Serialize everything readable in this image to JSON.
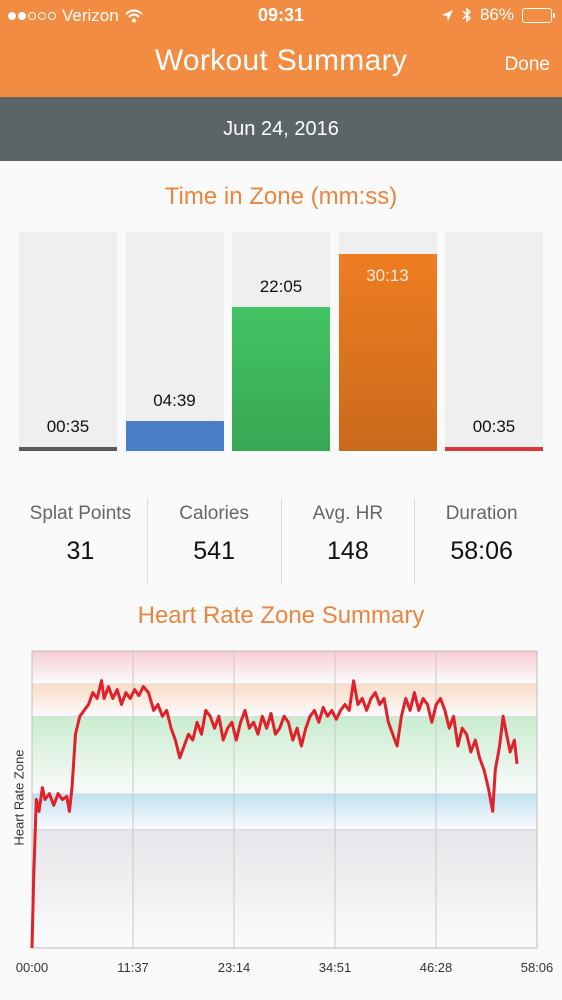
{
  "status": {
    "carrier": "Verizon",
    "time": "09:31",
    "battery": "86%",
    "battery_level": 0.86
  },
  "header": {
    "title": "Workout Summary",
    "done_label": "Done"
  },
  "date": "Jun 24, 2016",
  "zones": {
    "title": "Time in Zone (mm:ss)",
    "items": [
      {
        "label": "00:35",
        "seconds": 35,
        "color": "#5a5a5a"
      },
      {
        "label": "04:39",
        "seconds": 279,
        "color": "#4a7ec7"
      },
      {
        "label": "22:05",
        "seconds": 1325,
        "color": "#43c463"
      },
      {
        "label": "30:13",
        "seconds": 1813,
        "color": "#ee7d21"
      },
      {
        "label": "00:35",
        "seconds": 35,
        "color": "#d7363b"
      }
    ]
  },
  "stats": [
    {
      "label": "Splat Points",
      "value": "31"
    },
    {
      "label": "Calories",
      "value": "541"
    },
    {
      "label": "Avg. HR",
      "value": "148"
    },
    {
      "label": "Duration",
      "value": "58:06"
    }
  ],
  "hr_chart": {
    "title": "Heart Rate Zone Summary",
    "y_axis_label": "Heart Rate Zone",
    "x_ticks": [
      "00:00",
      "11:37",
      "23:14",
      "34:51",
      "46:28",
      "58:06"
    ]
  },
  "chart_data": {
    "type": "line",
    "title": "Heart Rate Zone Summary",
    "ylabel": "Heart Rate Zone",
    "xlabel": "",
    "x_unit": "minutes",
    "x_range": [
      0,
      58.1
    ],
    "y_range": [
      0,
      5
    ],
    "zone_bands": [
      {
        "from": 0,
        "to": 2,
        "color": "#e6e6ea"
      },
      {
        "from": 2,
        "to": 2.6,
        "color": "#bfe0f0"
      },
      {
        "from": 2.6,
        "to": 3.9,
        "color": "#c9eccf"
      },
      {
        "from": 3.9,
        "to": 4.45,
        "color": "#fbdcc6"
      },
      {
        "from": 4.45,
        "to": 5,
        "color": "#f7cdd3"
      }
    ],
    "series": [
      {
        "color": "#e0202a",
        "points": [
          [
            0,
            0
          ],
          [
            0.2,
            1.2
          ],
          [
            0.5,
            2.5
          ],
          [
            0.8,
            2.3
          ],
          [
            1.2,
            2.7
          ],
          [
            1.5,
            2.5
          ],
          [
            2,
            2.6
          ],
          [
            2.5,
            2.4
          ],
          [
            3,
            2.6
          ],
          [
            3.5,
            2.5
          ],
          [
            4,
            2.55
          ],
          [
            4.3,
            2.3
          ],
          [
            4.6,
            2.7
          ],
          [
            5,
            3.6
          ],
          [
            5.5,
            3.9
          ],
          [
            6,
            4.0
          ],
          [
            6.5,
            4.1
          ],
          [
            7,
            4.3
          ],
          [
            7.5,
            4.2
          ],
          [
            8,
            4.5
          ],
          [
            8.3,
            4.2
          ],
          [
            8.8,
            4.4
          ],
          [
            9.3,
            4.2
          ],
          [
            9.8,
            4.35
          ],
          [
            10.3,
            4.1
          ],
          [
            10.8,
            4.3
          ],
          [
            11.3,
            4.2
          ],
          [
            11.8,
            4.35
          ],
          [
            12.3,
            4.25
          ],
          [
            12.8,
            4.4
          ],
          [
            13.4,
            4.3
          ],
          [
            14,
            4.0
          ],
          [
            14.5,
            4.1
          ],
          [
            15,
            3.9
          ],
          [
            15.5,
            4.0
          ],
          [
            16,
            3.7
          ],
          [
            16.5,
            3.5
          ],
          [
            17,
            3.2
          ],
          [
            17.5,
            3.4
          ],
          [
            18,
            3.6
          ],
          [
            18.5,
            3.5
          ],
          [
            19,
            3.8
          ],
          [
            19.5,
            3.6
          ],
          [
            20,
            4.0
          ],
          [
            20.5,
            3.9
          ],
          [
            21,
            3.7
          ],
          [
            21.5,
            3.9
          ],
          [
            22,
            3.5
          ],
          [
            22.5,
            3.7
          ],
          [
            23,
            3.8
          ],
          [
            23.5,
            3.5
          ],
          [
            24,
            3.8
          ],
          [
            24.5,
            4.0
          ],
          [
            25,
            3.7
          ],
          [
            25.5,
            3.8
          ],
          [
            26,
            3.6
          ],
          [
            26.5,
            3.9
          ],
          [
            27,
            3.7
          ],
          [
            27.5,
            3.95
          ],
          [
            28,
            3.6
          ],
          [
            28.5,
            3.7
          ],
          [
            29,
            3.9
          ],
          [
            29.5,
            3.8
          ],
          [
            30,
            3.5
          ],
          [
            30.5,
            3.7
          ],
          [
            31,
            3.4
          ],
          [
            31.5,
            3.7
          ],
          [
            32,
            3.9
          ],
          [
            32.5,
            4.0
          ],
          [
            33,
            3.8
          ],
          [
            33.5,
            4.05
          ],
          [
            34,
            3.9
          ],
          [
            34.5,
            4.0
          ],
          [
            35,
            3.85
          ],
          [
            35.5,
            4.0
          ],
          [
            36,
            4.1
          ],
          [
            36.5,
            4.0
          ],
          [
            37,
            4.5
          ],
          [
            37.5,
            4.1
          ],
          [
            38,
            4.2
          ],
          [
            38.5,
            4.0
          ],
          [
            39,
            4.2
          ],
          [
            39.5,
            4.3
          ],
          [
            40,
            4.1
          ],
          [
            40.5,
            4.2
          ],
          [
            41,
            3.8
          ],
          [
            41.5,
            3.6
          ],
          [
            42,
            3.4
          ],
          [
            42.5,
            3.9
          ],
          [
            43,
            4.2
          ],
          [
            43.5,
            4.0
          ],
          [
            44,
            4.3
          ],
          [
            44.5,
            4.0
          ],
          [
            45,
            4.2
          ],
          [
            45.5,
            4.1
          ],
          [
            46,
            3.8
          ],
          [
            46.5,
            4.1
          ],
          [
            47,
            4.2
          ],
          [
            47.5,
            4.0
          ],
          [
            48,
            3.7
          ],
          [
            48.5,
            3.9
          ],
          [
            49,
            3.4
          ],
          [
            49.5,
            3.7
          ],
          [
            50,
            3.6
          ],
          [
            50.5,
            3.3
          ],
          [
            51,
            3.5
          ],
          [
            51.5,
            3.2
          ],
          [
            52,
            3.0
          ],
          [
            52.5,
            2.7
          ],
          [
            53,
            2.3
          ],
          [
            53.3,
            3.0
          ],
          [
            53.8,
            3.4
          ],
          [
            54.2,
            3.9
          ],
          [
            54.6,
            3.6
          ],
          [
            55,
            3.3
          ],
          [
            55.5,
            3.5
          ],
          [
            55.8,
            3.1
          ]
        ]
      }
    ]
  }
}
